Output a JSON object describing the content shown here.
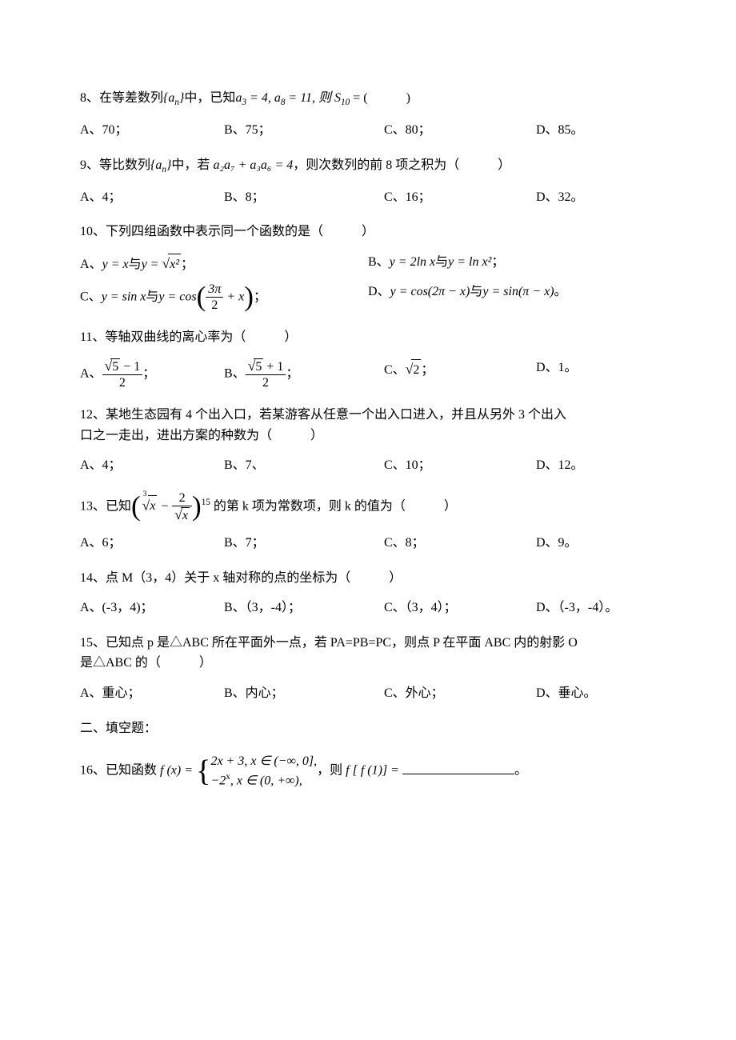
{
  "q8": {
    "prefix": "8、在等差数列",
    "seq": "{a",
    "seq_sub": "n",
    "seq_close": "}",
    "mid1": "中，已知",
    "a3": "a",
    "a3_sub": "3",
    "eq1": " = 4, ",
    "a8": "a",
    "a8_sub": "8",
    "eq2": " = 11, 则 ",
    "s10": "S",
    "s10_sub": "10",
    "eq3": " = (　　　)",
    "opt_a": "A、70；",
    "opt_b": "B、75；",
    "opt_c": "C、80；",
    "opt_d": "D、85。"
  },
  "q9": {
    "prefix": "9、等比数列",
    "seq": "{a",
    "seq_sub": "n",
    "seq_close": "}",
    "mid1": "中，若 ",
    "expr": "a₂a₇ + a₃a₆ = 4",
    "mid2": "，则次数列的前 8 项之积为（　　　）",
    "opt_a": "A、4；",
    "opt_b": "B、8；",
    "opt_c": "C、16；",
    "opt_d": "D、32。"
  },
  "q10": {
    "text": "10、下列四组函数中表示同一个函数的是（　　　）",
    "opt_a_pre": "A、",
    "opt_a_y1": "y = x",
    "opt_a_and": "与",
    "opt_a_y2_pre": "y = ",
    "opt_a_sqrt": "√",
    "opt_a_sqrt_body": "x²",
    "opt_a_end": "；",
    "opt_b_pre": "B、",
    "opt_b_y1": "y = 2ln x",
    "opt_b_and": "与",
    "opt_b_y2": "y = ln x²",
    "opt_b_end": "；",
    "opt_c_pre": "C、",
    "opt_c_y1": "y = sin x",
    "opt_c_and": "与",
    "opt_c_y2": "y = cos",
    "opt_c_frac_num": "3π",
    "opt_c_frac_den": "2",
    "opt_c_plus": " + x",
    "opt_c_end": "；",
    "opt_d_pre": "D、",
    "opt_d_y1": "y = cos(2π − x)",
    "opt_d_and": "与",
    "opt_d_y2": "y = sin(π − x)",
    "opt_d_end": "。"
  },
  "q11": {
    "text": "11、等轴双曲线的离心率为（　　　）",
    "opt_a_pre": "A、",
    "opt_a_num_pre": "√",
    "opt_a_num_body": "5",
    "opt_a_num_post": " − 1",
    "opt_a_den": "2",
    "opt_a_end": "；",
    "opt_b_pre": "B、",
    "opt_b_num_pre": "√",
    "opt_b_num_body": "5",
    "opt_b_num_post": " + 1",
    "opt_b_den": "2",
    "opt_b_end": "；",
    "opt_c_pre": "C、",
    "opt_c_sqrt": "√",
    "opt_c_sqrt_body": "2",
    "opt_c_end": "；",
    "opt_d": "D、1。"
  },
  "q12": {
    "line1": "12、某地生态园有 4 个出入口，若某游客从任意一个出入口进入，并且从另外 3 个出入",
    "line2": "口之一走出，进出方案的种数为（　　　）",
    "opt_a": "A、4；",
    "opt_b": "B、7、",
    "opt_c": "C、10；",
    "opt_d": "D、12。"
  },
  "q13": {
    "prefix": "13、已知",
    "root_idx": "3",
    "root_sign": "√",
    "root_body": "x",
    "minus": " − ",
    "frac_num": "2",
    "frac_den_sign": "√",
    "frac_den_body": "x",
    "exp": "15",
    "mid": " 的第 k 项为常数项，则 k 的值为（　　　）",
    "opt_a": "A、6；",
    "opt_b": "B、7；",
    "opt_c": "C、8；",
    "opt_d": "D、9。"
  },
  "q14": {
    "text": "14、点 M（3，4）关于 x 轴对称的点的坐标为（　　　）",
    "opt_a": "A、(-3，4)；",
    "opt_b": "B、（3，-4）；",
    "opt_c": "C、（3，4）；",
    "opt_d": "D、（-3，-4）。"
  },
  "q15": {
    "line1": "15、已知点 p 是△ABC 所在平面外一点，若 PA=PB=PC，则点 P 在平面 ABC 内的射影 O",
    "line2": "是△ABC 的（　　　）",
    "opt_a": "A、重心；",
    "opt_b": "B、内心；",
    "opt_c": "C、外心；",
    "opt_d": "D、垂心。"
  },
  "section2": "二、填空题：",
  "q16": {
    "prefix": "16、已知函数 ",
    "fx": "f (x) = ",
    "case1": "2x + 3, x ∈ (−∞, 0],",
    "case2_pre": "−2",
    "case2_sup": "x",
    "case2_post": ", x ∈ (0, +∞),",
    "mid": "，则 ",
    "ff1": "f [ f (1)] = ",
    "end": "。"
  }
}
